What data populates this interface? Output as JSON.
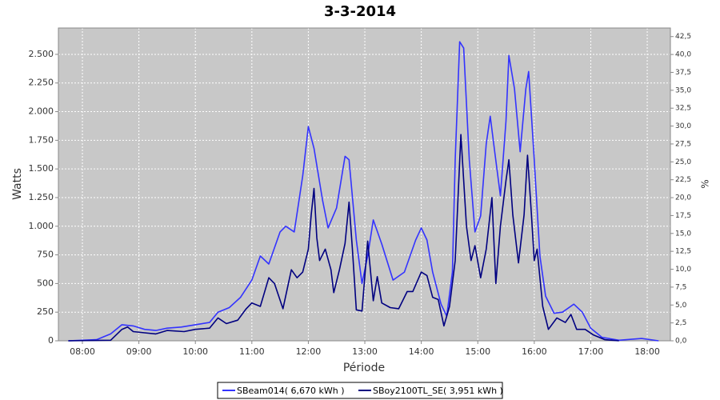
{
  "chart_data": {
    "type": "line",
    "title": "3-3-2014",
    "x_label": "Période",
    "y_label": "Watts",
    "y2_label": "%",
    "xlim": [
      7.575,
      18.41
    ],
    "xticks": [
      {
        "value": 8,
        "label": "08:00"
      },
      {
        "value": 9,
        "label": "09:00"
      },
      {
        "value": 10,
        "label": "10:00"
      },
      {
        "value": 11,
        "label": "11:00"
      },
      {
        "value": 12,
        "label": "12:00"
      },
      {
        "value": 13,
        "label": "13:00"
      },
      {
        "value": 14,
        "label": "14:00"
      },
      {
        "value": 15,
        "label": "15:00"
      },
      {
        "value": 16,
        "label": "16:00"
      },
      {
        "value": 17,
        "label": "17:00"
      },
      {
        "value": 18,
        "label": "18:00"
      }
    ],
    "ylim": [
      0,
      2730
    ],
    "yticks": [
      0,
      250,
      500,
      750,
      {
        "value": 1000,
        "label": "1.000"
      },
      {
        "value": 1250,
        "label": "1.250"
      },
      {
        "value": 1500,
        "label": "1.500"
      },
      {
        "value": 1750,
        "label": "1.750"
      },
      {
        "value": 2000,
        "label": "2.000"
      },
      {
        "value": 2250,
        "label": "2.250"
      },
      {
        "value": 2500,
        "label": "2.500"
      }
    ],
    "y2lim": [
      0,
      43.7
    ],
    "y2ticks": [
      {
        "value": 0,
        "label": "0,0"
      },
      {
        "value": 2.5,
        "label": "2,5"
      },
      {
        "value": 5,
        "label": "5,0"
      },
      {
        "value": 7.5,
        "label": "7,5"
      },
      {
        "value": 10,
        "label": "10,0"
      },
      {
        "value": 12.5,
        "label": "12,5"
      },
      {
        "value": 15,
        "label": "15,0"
      },
      {
        "value": 17.5,
        "label": "17,5"
      },
      {
        "value": 20,
        "label": "20,0"
      },
      {
        "value": 22.5,
        "label": "22,5"
      },
      {
        "value": 25,
        "label": "25,0"
      },
      {
        "value": 27.5,
        "label": "27,5"
      },
      {
        "value": 30,
        "label": "30,0"
      },
      {
        "value": 32.5,
        "label": "32,5"
      },
      {
        "value": 35,
        "label": "35,0"
      },
      {
        "value": 37.5,
        "label": "37,5"
      },
      {
        "value": 40,
        "label": "40,0"
      },
      {
        "value": 42.5,
        "label": "42,5"
      }
    ],
    "grid": true,
    "series": [
      {
        "name": "SBeam014( 6,670 kWh )",
        "color": "#3333ff",
        "x": [
          7.75,
          8.0,
          8.25,
          8.5,
          8.7,
          8.9,
          9.1,
          9.3,
          9.5,
          9.75,
          10.0,
          10.25,
          10.4,
          10.6,
          10.8,
          11.0,
          11.15,
          11.3,
          11.5,
          11.6,
          11.75,
          11.9,
          12.0,
          12.1,
          12.25,
          12.35,
          12.5,
          12.65,
          12.72,
          12.85,
          12.95,
          13.05,
          13.15,
          13.3,
          13.5,
          13.7,
          13.9,
          14.0,
          14.1,
          14.2,
          14.35,
          14.45,
          14.55,
          14.6,
          14.68,
          14.75,
          14.85,
          14.95,
          15.05,
          15.15,
          15.22,
          15.3,
          15.4,
          15.5,
          15.55,
          15.65,
          15.75,
          15.85,
          15.9,
          16.0,
          16.1,
          16.2,
          16.35,
          16.5,
          16.7,
          16.85,
          17.0,
          17.2,
          17.5,
          17.9,
          18.2
        ],
        "values": [
          0,
          5,
          10,
          60,
          140,
          130,
          100,
          90,
          110,
          120,
          140,
          160,
          250,
          290,
          380,
          530,
          740,
          670,
          950,
          1000,
          950,
          1440,
          1870,
          1680,
          1230,
          985,
          1160,
          1610,
          1580,
          880,
          500,
          740,
          1055,
          845,
          530,
          600,
          880,
          985,
          880,
          600,
          320,
          215,
          600,
          1580,
          2610,
          2555,
          1580,
          950,
          1090,
          1720,
          1960,
          1650,
          1265,
          1920,
          2490,
          2200,
          1650,
          2200,
          2350,
          1580,
          740,
          390,
          240,
          250,
          320,
          250,
          110,
          30,
          5,
          20,
          0
        ]
      },
      {
        "name": "SBoy2100TL_SE( 3,951 kWh )",
        "color": "#000080",
        "x": [
          7.75,
          8.5,
          8.7,
          8.8,
          8.9,
          9.1,
          9.3,
          9.5,
          9.8,
          10.0,
          10.25,
          10.4,
          10.55,
          10.75,
          10.9,
          11.0,
          11.15,
          11.3,
          11.4,
          11.55,
          11.7,
          11.8,
          11.9,
          12.0,
          12.05,
          12.1,
          12.15,
          12.2,
          12.3,
          12.4,
          12.45,
          12.55,
          12.65,
          12.72,
          12.78,
          12.85,
          12.95,
          13.05,
          13.15,
          13.22,
          13.3,
          13.45,
          13.6,
          13.75,
          13.85,
          14.0,
          14.1,
          14.2,
          14.3,
          14.4,
          14.5,
          14.6,
          14.7,
          14.8,
          14.88,
          14.95,
          15.05,
          15.15,
          15.25,
          15.32,
          15.4,
          15.5,
          15.55,
          15.62,
          15.72,
          15.82,
          15.88,
          15.95,
          16.0,
          16.05,
          16.15,
          16.25,
          16.4,
          16.55,
          16.65,
          16.75,
          16.9,
          17.05,
          17.25,
          17.5
        ],
        "values": [
          0,
          5,
          100,
          120,
          80,
          70,
          60,
          90,
          80,
          100,
          110,
          200,
          150,
          180,
          280,
          330,
          300,
          550,
          500,
          280,
          620,
          550,
          600,
          800,
          1100,
          1330,
          900,
          700,
          800,
          620,
          420,
          620,
          850,
          1210,
          800,
          270,
          260,
          870,
          350,
          560,
          330,
          290,
          280,
          430,
          430,
          600,
          570,
          380,
          360,
          130,
          300,
          700,
          1800,
          1000,
          700,
          830,
          550,
          800,
          1250,
          500,
          1000,
          1400,
          1580,
          1100,
          680,
          1100,
          1620,
          1100,
          700,
          800,
          300,
          100,
          200,
          160,
          230,
          100,
          100,
          50,
          10,
          0
        ]
      }
    ]
  }
}
